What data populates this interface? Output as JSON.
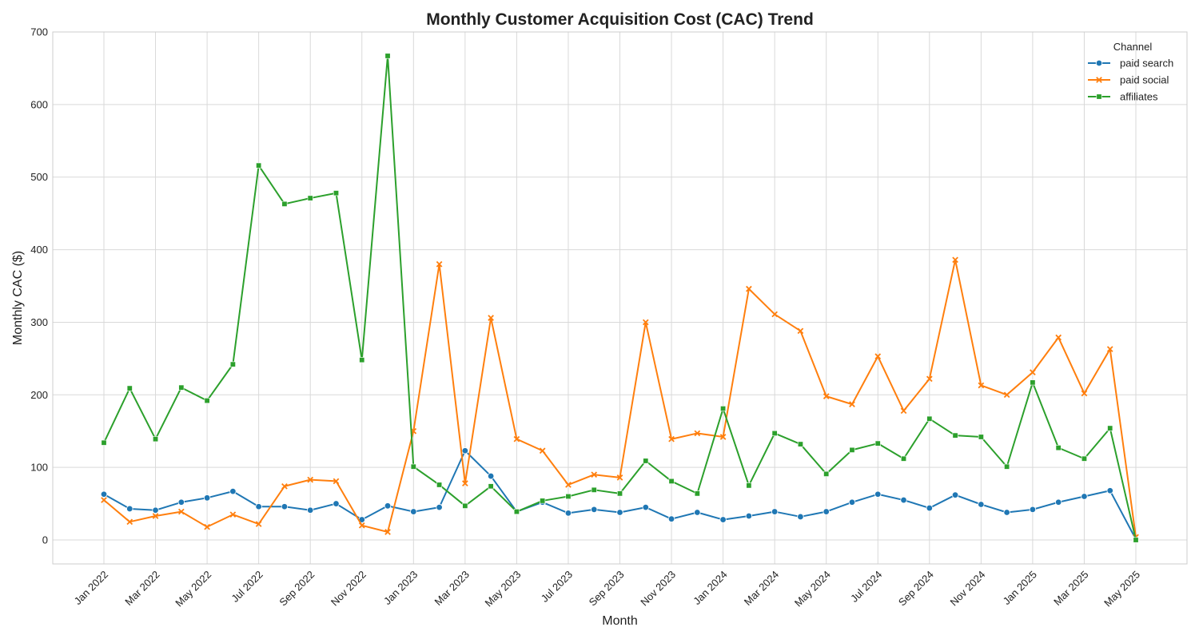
{
  "chart_data": {
    "type": "line",
    "title": "Monthly Customer Acquisition Cost (CAC) Trend",
    "xlabel": "Month",
    "ylabel": "Monthly CAC ($)",
    "ylim": [
      -33,
      700
    ],
    "yticks": [
      0,
      100,
      200,
      300,
      400,
      500,
      600,
      700
    ],
    "grid": true,
    "legend": {
      "title": "Channel",
      "placement": "top-right"
    },
    "x": [
      "2022-01",
      "2022-02",
      "2022-03",
      "2022-04",
      "2022-05",
      "2022-06",
      "2022-07",
      "2022-08",
      "2022-09",
      "2022-10",
      "2022-11",
      "2022-12",
      "2023-01",
      "2023-02",
      "2023-03",
      "2023-04",
      "2023-05",
      "2023-06",
      "2023-07",
      "2023-08",
      "2023-09",
      "2023-10",
      "2023-11",
      "2023-12",
      "2024-01",
      "2024-02",
      "2024-03",
      "2024-04",
      "2024-05",
      "2024-06",
      "2024-07",
      "2024-08",
      "2024-09",
      "2024-10",
      "2024-11",
      "2024-12",
      "2025-01",
      "2025-02",
      "2025-03",
      "2025-04",
      "2025-05"
    ],
    "xticks": [
      "Jan 2022",
      "Mar 2022",
      "May 2022",
      "Jul 2022",
      "Sep 2022",
      "Nov 2022",
      "Jan 2023",
      "Mar 2023",
      "May 2023",
      "Jul 2023",
      "Sep 2023",
      "Nov 2023",
      "Jan 2024",
      "Mar 2024",
      "May 2024",
      "Jul 2024",
      "Sep 2024",
      "Nov 2024",
      "Jan 2025",
      "Mar 2025",
      "May 2025"
    ],
    "series": [
      {
        "name": "paid search",
        "color": "#1f77b4",
        "marker": "circle",
        "values": [
          63,
          43,
          41,
          52,
          58,
          67,
          46,
          46,
          41,
          50,
          28,
          47,
          39,
          45,
          123,
          88,
          39,
          52,
          37,
          42,
          38,
          45,
          29,
          38,
          28,
          33,
          39,
          32,
          39,
          52,
          63,
          55,
          44,
          62,
          49,
          38,
          42,
          52,
          60,
          68,
          1
        ]
      },
      {
        "name": "paid social",
        "color": "#ff7f0e",
        "marker": "x",
        "values": [
          55,
          25,
          33,
          39,
          18,
          35,
          22,
          74,
          83,
          81,
          20,
          11,
          150,
          380,
          78,
          306,
          139,
          123,
          76,
          90,
          86,
          300,
          139,
          147,
          142,
          346,
          311,
          288,
          198,
          187,
          253,
          178,
          222,
          386,
          213,
          200,
          231,
          279,
          202,
          263,
          4
        ]
      },
      {
        "name": "affiliates",
        "color": "#2ca02c",
        "marker": "square",
        "values": [
          134,
          209,
          139,
          210,
          192,
          242,
          516,
          463,
          471,
          478,
          248,
          667,
          101,
          76,
          47,
          74,
          39,
          54,
          60,
          69,
          64,
          109,
          81,
          64,
          181,
          75,
          147,
          132,
          91,
          124,
          133,
          112,
          167,
          144,
          142,
          101,
          217,
          127,
          112,
          154,
          0
        ]
      }
    ]
  }
}
